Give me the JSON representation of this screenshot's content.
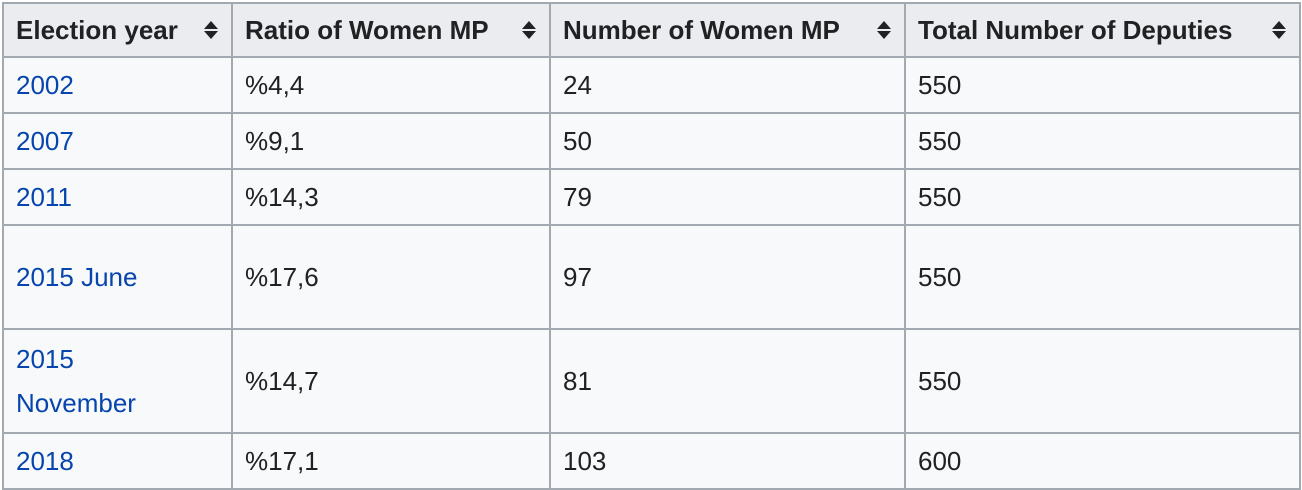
{
  "table": {
    "headers": [
      {
        "label": "Election year"
      },
      {
        "label": "Ratio of Women MP"
      },
      {
        "label": "Number of Women MP"
      },
      {
        "label": "Total Number of Deputies"
      }
    ],
    "rows": [
      {
        "year": "2002",
        "ratio": "%4,4",
        "women": "24",
        "total": "550"
      },
      {
        "year": "2007",
        "ratio": "%9,1",
        "women": "50",
        "total": "550"
      },
      {
        "year": "2011",
        "ratio": "%14,3",
        "women": "79",
        "total": "550"
      },
      {
        "year": "2015 June",
        "ratio": "%17,6",
        "women": "97",
        "total": "550"
      },
      {
        "year": "2015 November",
        "ratio": "%14,7",
        "women": "81",
        "total": "550"
      },
      {
        "year": "2018",
        "ratio": "%17,1",
        "women": "103",
        "total": "600"
      }
    ]
  },
  "colors": {
    "link": "#0645ad",
    "header_bg": "#eaecf0",
    "cell_bg": "#f8f9fa",
    "border": "#a2a9b1",
    "text": "#202122"
  },
  "icons": {
    "sort": "sort-both-icon"
  }
}
